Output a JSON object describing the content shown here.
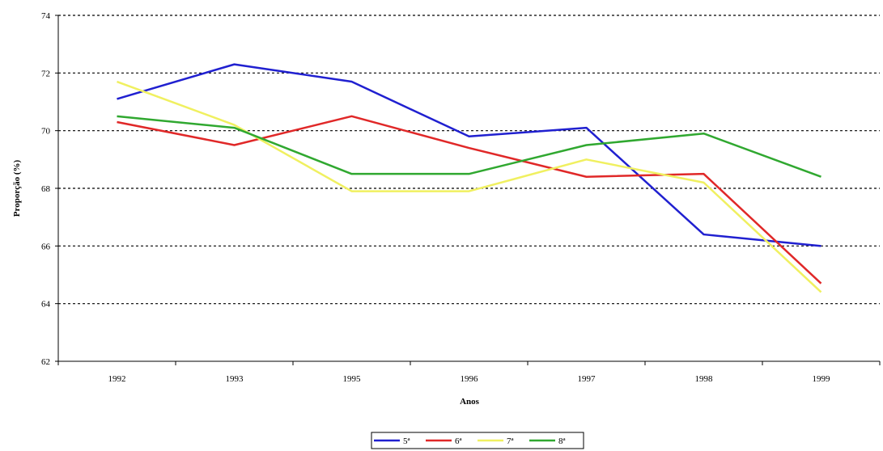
{
  "chart_data": {
    "type": "line",
    "xlabel": "Anos",
    "ylabel": "Proporção (%)",
    "categories": [
      "1992",
      "1993",
      "1995",
      "1996",
      "1997",
      "1998",
      "1999"
    ],
    "ylim": [
      62,
      74
    ],
    "yticks": [
      "62",
      "64",
      "66",
      "68",
      "70",
      "72",
      "74"
    ],
    "grid": "horizontal dashed",
    "legend_position": "bottom",
    "series": [
      {
        "name": "5ª",
        "color": "#2020d0",
        "values": [
          71.1,
          72.3,
          71.7,
          69.8,
          70.1,
          66.4,
          66.0
        ]
      },
      {
        "name": "6ª",
        "color": "#e02828",
        "values": [
          70.3,
          69.5,
          70.5,
          69.4,
          68.4,
          68.5,
          64.7
        ]
      },
      {
        "name": "7ª",
        "color": "#f0f060",
        "values": [
          71.7,
          70.2,
          67.9,
          67.9,
          69.0,
          68.2,
          64.4
        ]
      },
      {
        "name": "8ª",
        "color": "#30a830",
        "values": [
          70.5,
          70.1,
          68.5,
          68.5,
          69.5,
          69.9,
          68.4
        ]
      }
    ]
  }
}
